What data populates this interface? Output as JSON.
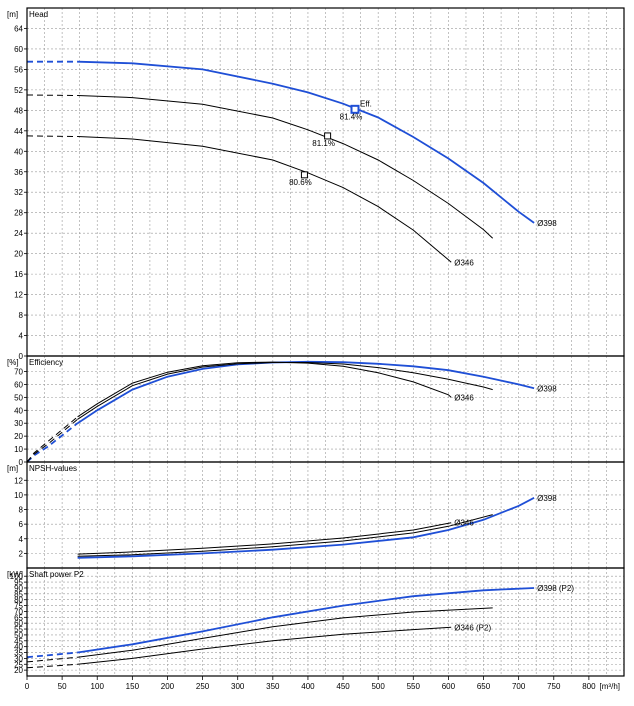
{
  "colors": {
    "blue": "#1f4fd6",
    "black": "#000000",
    "grid": "#9a9a9a"
  },
  "x_axis": {
    "unit": "[m³/h]",
    "min": 0,
    "max": 850,
    "ticks": [
      0,
      50,
      100,
      150,
      200,
      250,
      300,
      350,
      400,
      450,
      500,
      550,
      600,
      650,
      700,
      750,
      800
    ]
  },
  "chart_data": [
    {
      "type": "line",
      "title": "Head",
      "ylabel": "[m]",
      "ylim": [
        0,
        68
      ],
      "yticks": [
        0,
        4,
        8,
        12,
        16,
        20,
        24,
        28,
        32,
        36,
        40,
        44,
        48,
        52,
        56,
        60,
        64
      ],
      "series": [
        {
          "name": "Ø398",
          "color": "blue",
          "dashed_x": [
            0,
            72
          ],
          "x": [
            0,
            72,
            150,
            250,
            350,
            400,
            450,
            500,
            550,
            600,
            650,
            700,
            722
          ],
          "y": [
            57.5,
            57.5,
            57.2,
            56,
            53.2,
            51.5,
            49.3,
            46.6,
            42.8,
            38.6,
            33.8,
            28.2,
            26
          ]
        },
        {
          "name": "",
          "color": "black",
          "dashed_x": [
            0,
            72
          ],
          "x": [
            0,
            72,
            150,
            250,
            350,
            400,
            450,
            500,
            550,
            600,
            650,
            663
          ],
          "y": [
            51,
            50.9,
            50.5,
            49.2,
            46.5,
            44.2,
            41.5,
            38.3,
            34.3,
            29.8,
            24.7,
            23
          ]
        },
        {
          "name": "Ø346",
          "color": "black",
          "dashed_x": [
            0,
            72
          ],
          "x": [
            0,
            72,
            150,
            250,
            350,
            400,
            450,
            500,
            550,
            600,
            604
          ],
          "y": [
            43,
            42.9,
            42.4,
            41,
            38.3,
            35.8,
            32.9,
            29.2,
            24.6,
            18.8,
            18.3
          ]
        }
      ],
      "markers": [
        {
          "x": 467,
          "y": 48.2,
          "label": "81.4%",
          "color": "blue",
          "tag": "Eff."
        },
        {
          "x": 428,
          "y": 43,
          "label": "81.1%",
          "color": "black"
        },
        {
          "x": 395,
          "y": 35.4,
          "label": "80.6%",
          "color": "black"
        }
      ]
    },
    {
      "type": "line",
      "title": "Efficiency",
      "ylabel": "[%]",
      "ylim": [
        0,
        82
      ],
      "yticks": [
        0,
        10,
        20,
        30,
        40,
        50,
        60,
        70
      ],
      "series": [
        {
          "name": "Ø398",
          "color": "blue",
          "dashed_x": [
            0,
            72
          ],
          "x": [
            0,
            10,
            30,
            72,
            100,
            150,
            200,
            250,
            300,
            350,
            400,
            450,
            500,
            550,
            600,
            650,
            700,
            722
          ],
          "y": [
            0,
            5,
            12,
            30,
            40,
            56,
            66,
            72,
            75.5,
            77,
            77.5,
            77.2,
            76,
            74,
            71,
            66,
            60,
            57
          ]
        },
        {
          "name": "",
          "color": "black",
          "dashed_x": [
            0,
            72
          ],
          "x": [
            0,
            10,
            30,
            72,
            100,
            150,
            200,
            250,
            300,
            350,
            400,
            450,
            500,
            550,
            600,
            650,
            663
          ],
          "y": [
            0,
            6,
            14,
            33,
            43,
            59,
            68,
            73.5,
            76,
            77,
            77,
            75.8,
            73,
            69,
            64,
            58,
            56
          ]
        },
        {
          "name": "Ø346",
          "color": "black",
          "dashed_x": [
            0,
            72
          ],
          "x": [
            0,
            10,
            30,
            72,
            100,
            150,
            200,
            250,
            300,
            350,
            400,
            450,
            500,
            550,
            600,
            604
          ],
          "y": [
            0,
            7,
            16,
            35,
            45,
            61,
            69.5,
            74.5,
            76.8,
            77.3,
            76.5,
            74,
            69,
            62,
            52,
            50
          ]
        }
      ]
    },
    {
      "type": "line",
      "title": "NPSH-values",
      "ylabel": "[m]",
      "ylim": [
        0,
        14.5
      ],
      "yticks": [
        2,
        4,
        6,
        8,
        10,
        12
      ],
      "series": [
        {
          "name": "Ø398",
          "color": "blue",
          "x": [
            72,
            150,
            250,
            350,
            450,
            550,
            600,
            650,
            700,
            722
          ],
          "y": [
            1.4,
            1.6,
            2.0,
            2.5,
            3.2,
            4.2,
            5.2,
            6.6,
            8.5,
            9.6
          ]
        },
        {
          "name": "",
          "color": "black",
          "x": [
            72,
            150,
            250,
            350,
            450,
            550,
            600,
            663
          ],
          "y": [
            1.6,
            1.8,
            2.3,
            2.9,
            3.7,
            4.8,
            5.7,
            7.3
          ]
        },
        {
          "name": "Ø346",
          "color": "black",
          "x": [
            72,
            150,
            250,
            350,
            450,
            550,
            604
          ],
          "y": [
            1.9,
            2.2,
            2.7,
            3.3,
            4.1,
            5.2,
            6.2
          ]
        }
      ]
    },
    {
      "type": "line",
      "title": "Shaft power P2",
      "ylabel": "[kW]",
      "ylim": [
        15,
        107
      ],
      "yticks": [
        20,
        25,
        30,
        35,
        40,
        45,
        50,
        55,
        60,
        65,
        70,
        75,
        80,
        85,
        90,
        95,
        100
      ],
      "series": [
        {
          "name": "Ø398 (P2)",
          "color": "blue",
          "dashed_x": [
            0,
            72
          ],
          "x": [
            0,
            72,
            150,
            250,
            350,
            450,
            550,
            650,
            722
          ],
          "y": [
            31,
            35,
            42,
            53,
            65,
            75,
            83,
            88,
            90
          ]
        },
        {
          "name": "",
          "color": "black",
          "dashed_x": [
            0,
            72
          ],
          "x": [
            0,
            72,
            150,
            250,
            350,
            450,
            550,
            663
          ],
          "y": [
            27,
            31,
            37,
            47,
            57,
            64.5,
            69.5,
            73
          ]
        },
        {
          "name": "Ø346 (P2)",
          "color": "black",
          "dashed_x": [
            0,
            72
          ],
          "x": [
            0,
            72,
            150,
            250,
            350,
            450,
            550,
            604
          ],
          "y": [
            22,
            25,
            30,
            38,
            45,
            50.5,
            54.5,
            56.5
          ]
        }
      ]
    }
  ]
}
